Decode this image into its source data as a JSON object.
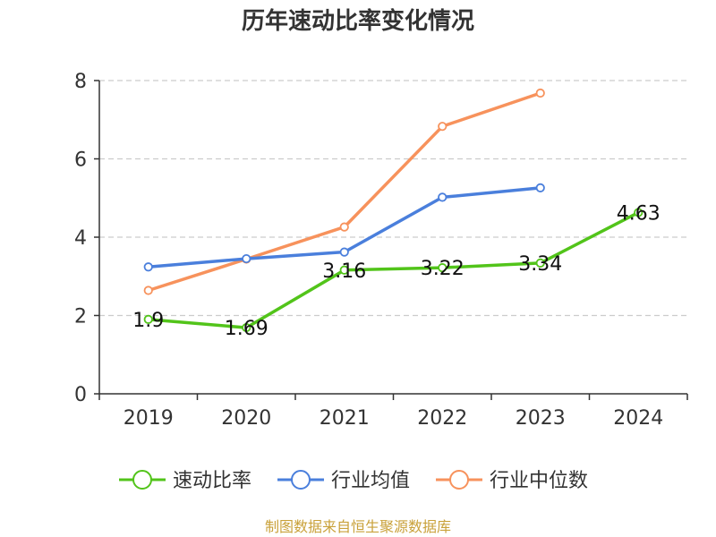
{
  "chart_data": {
    "type": "line",
    "title": "历年速动比率变化情况",
    "categories": [
      "2019",
      "2020",
      "2021",
      "2022",
      "2023",
      "2024"
    ],
    "ylim": [
      0,
      8
    ],
    "yticks": [
      "0",
      "2",
      "4",
      "6",
      "8"
    ],
    "grid": true,
    "legend_position": "bottom",
    "series": [
      {
        "name": "速动比率",
        "color": "#52c41a",
        "values": [
          1.9,
          1.69,
          3.16,
          3.22,
          3.34,
          4.63
        ],
        "labels": [
          "1.9",
          "1.69",
          "3.16",
          "3.22",
          "3.34",
          "4.63"
        ]
      },
      {
        "name": "行业均值",
        "color": "#4a7fdc",
        "values": [
          3.24,
          3.45,
          3.62,
          5.02,
          5.26,
          null
        ]
      },
      {
        "name": "行业中位数",
        "color": "#f7925c",
        "values": [
          2.64,
          3.44,
          4.26,
          6.83,
          7.68,
          null
        ]
      }
    ]
  },
  "source": {
    "text": "制图数据来自恒生聚源数据库",
    "color": "#c9a13a"
  }
}
